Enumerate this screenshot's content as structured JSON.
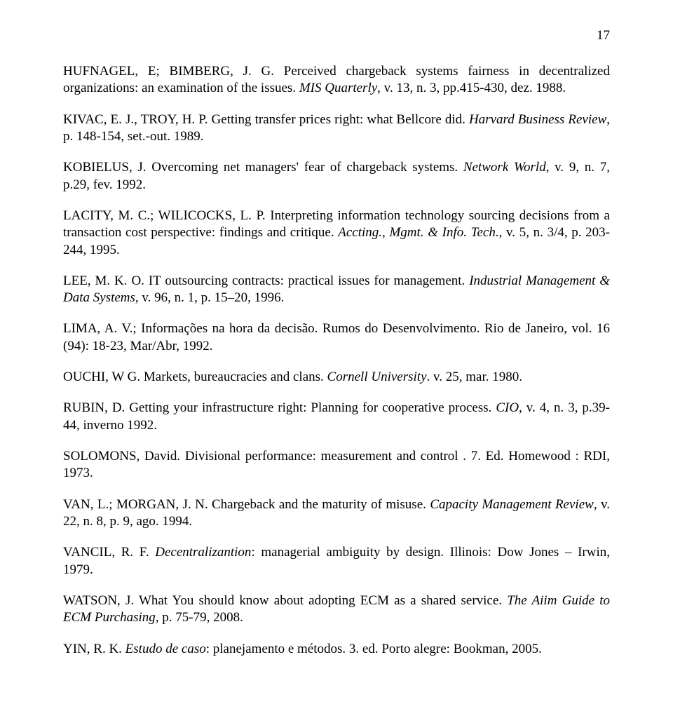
{
  "pageNumber": "17",
  "refs": [
    [
      {
        "t": "HUFNAGEL, E; BIMBERG, J. G. Perceived chargeback systems fairness in decentralized organizations: an examination of the issues. ",
        "i": false
      },
      {
        "t": "MIS Quarterly",
        "i": true
      },
      {
        "t": ", v. 13, n. 3, pp.415-430, dez. 1988.",
        "i": false
      }
    ],
    [
      {
        "t": "KIVAC, E. J., TROY, H. P. Getting transfer prices right: what Bellcore did. ",
        "i": false
      },
      {
        "t": "Harvard Business Review",
        "i": true
      },
      {
        "t": ", p. 148-154, set.-out. 1989.",
        "i": false
      }
    ],
    [
      {
        "t": "KOBIELUS, J. Overcoming net managers' fear of chargeback systems. ",
        "i": false
      },
      {
        "t": "Network World",
        "i": true
      },
      {
        "t": ", v. 9, n. 7, p.29, fev. 1992.",
        "i": false
      }
    ],
    [
      {
        "t": "LACITY, M. C.; WILICOCKS, L. P. Interpreting information technology sourcing decisions from a transaction cost perspective: findings and critique. ",
        "i": false
      },
      {
        "t": "Accting., Mgmt. & Info. Tech.",
        "i": true
      },
      {
        "t": ", v. 5, n. 3/4, p. 203-244, 1995.",
        "i": false
      }
    ],
    [
      {
        "t": "LEE, M. K. O. IT outsourcing contracts: practical issues for management. ",
        "i": false
      },
      {
        "t": "Industrial Management & Data Systems",
        "i": true
      },
      {
        "t": ", v. 96, n. 1, p. 15–20, 1996.",
        "i": false
      }
    ],
    [
      {
        "t": "LIMA, A. V.; Informações na hora da decisão. Rumos do Desenvolvimento. Rio de Janeiro, vol. 16 (94): 18-23, Mar/Abr, 1992.",
        "i": false
      }
    ],
    [
      {
        "t": "OUCHI, W G. Markets, bureaucracies and clans. ",
        "i": false
      },
      {
        "t": "Cornell University",
        "i": true
      },
      {
        "t": ". v. 25, mar. 1980.",
        "i": false
      }
    ],
    [
      {
        "t": "RUBIN, D. Getting your infrastructure right: Planning for cooperative process. ",
        "i": false
      },
      {
        "t": "CIO",
        "i": true
      },
      {
        "t": ", v. 4, n. 3, p.39-44, inverno 1992.",
        "i": false
      }
    ],
    [
      {
        "t": "SOLOMONS, David.  Divisional performance:  measurement and control . 7. Ed.  Homewood :  RDI,  1973.",
        "i": false
      }
    ],
    [
      {
        "t": "VAN, L.; MORGAN, J. N. Chargeback and the maturity of misuse. ",
        "i": false
      },
      {
        "t": "Capacity Management Review",
        "i": true
      },
      {
        "t": ", v. 22, n. 8, p. 9, ago. 1994.",
        "i": false
      }
    ],
    [
      {
        "t": "VANCIL, R. F. ",
        "i": false
      },
      {
        "t": "Decentralizantion",
        "i": true
      },
      {
        "t": ": managerial ambiguity by design. Illinois: Dow Jones – Irwin, 1979.",
        "i": false
      }
    ],
    [
      {
        "t": "WATSON, J. What You should know about adopting ECM as a shared service. ",
        "i": false
      },
      {
        "t": "The Aiim Guide to ECM Purchasing",
        "i": true
      },
      {
        "t": ", p. 75-79, 2008.",
        "i": false
      }
    ],
    [
      {
        "t": "YIN, R. K. ",
        "i": false
      },
      {
        "t": "Estudo de caso",
        "i": true
      },
      {
        "t": ": planejamento e métodos. 3. ed. Porto alegre: Bookman, 2005.",
        "i": false
      }
    ]
  ]
}
